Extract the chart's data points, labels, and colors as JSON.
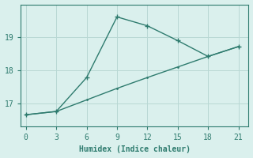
{
  "line1_x": [
    0,
    3,
    6,
    9,
    12,
    15,
    18,
    21
  ],
  "line1_y": [
    16.65,
    16.75,
    17.78,
    19.62,
    19.35,
    18.9,
    18.42,
    18.72
  ],
  "line2_x": [
    0,
    3,
    6,
    9,
    12,
    15,
    18,
    21
  ],
  "line2_y": [
    16.65,
    16.75,
    17.1,
    17.45,
    17.78,
    18.1,
    18.42,
    18.72
  ],
  "line1_marker_x": [
    0,
    3,
    6,
    9,
    12,
    15,
    18,
    21
  ],
  "line1_marker_y": [
    16.65,
    16.75,
    17.78,
    19.62,
    19.35,
    18.9,
    18.42,
    18.72
  ],
  "line_color": "#2e7b6e",
  "bg_color": "#daf0ed",
  "grid_color": "#b8d8d4",
  "xlabel": "Humidex (Indice chaleur)",
  "xlim": [
    -0.5,
    22.0
  ],
  "ylim": [
    16.3,
    20.0
  ],
  "xticks": [
    0,
    3,
    6,
    9,
    12,
    15,
    18,
    21
  ],
  "yticks": [
    17,
    18,
    19
  ],
  "markersize": 4,
  "linewidth": 1.0
}
